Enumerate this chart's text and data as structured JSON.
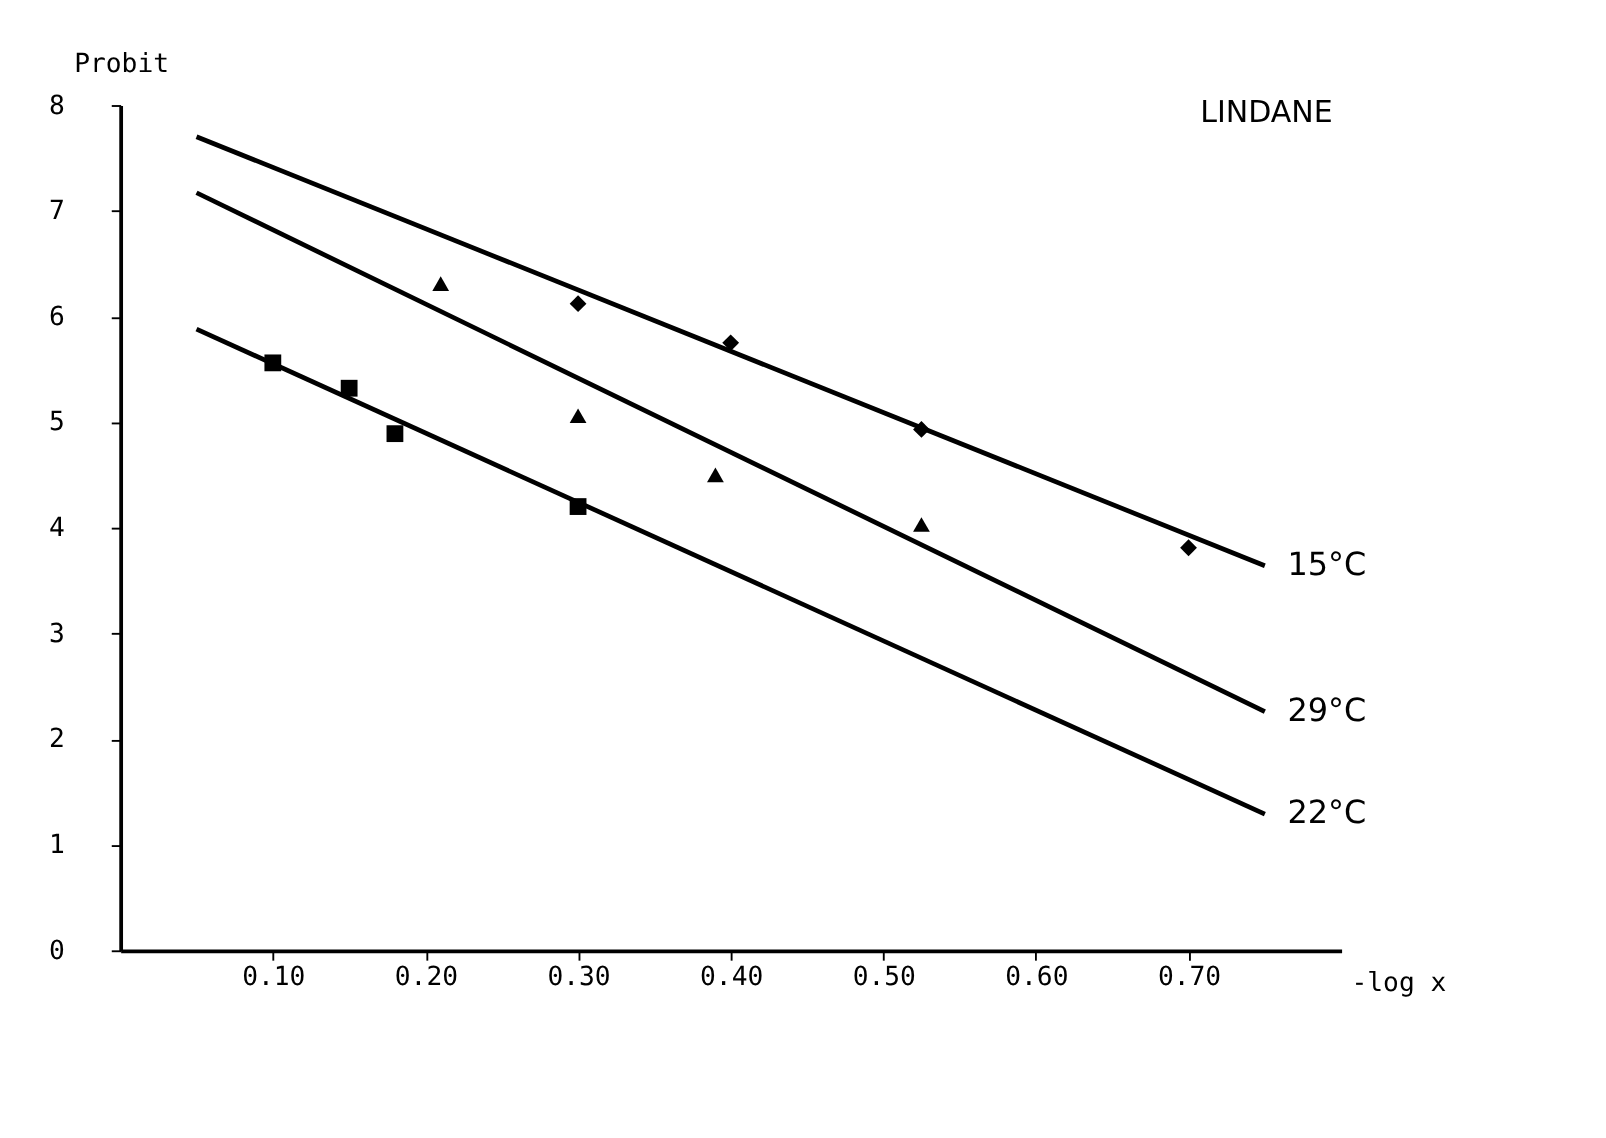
{
  "chart_data": {
    "type": "line",
    "title": "LINDANE",
    "xlabel": "-log x",
    "ylabel": "Probit",
    "xlim": [
      0,
      0.8
    ],
    "ylim": [
      0,
      8
    ],
    "xticks": [
      {
        "value": 0.1,
        "label": "0.10"
      },
      {
        "value": 0.2,
        "label": "0.20"
      },
      {
        "value": 0.3,
        "label": "0.30"
      },
      {
        "value": 0.4,
        "label": "0.40"
      },
      {
        "value": 0.5,
        "label": "0.50"
      },
      {
        "value": 0.6,
        "label": "0.60"
      },
      {
        "value": 0.7,
        "label": "0.70"
      }
    ],
    "yticks": [
      0,
      1,
      2,
      3,
      4,
      5,
      6,
      7,
      8
    ],
    "grid": false,
    "series": [
      {
        "name": "15°C",
        "type": "line",
        "color": "#000000",
        "marker": "none",
        "line_style": "solid",
        "x": [
          0.05,
          0.75
        ],
        "values": [
          7.7,
          3.64
        ]
      },
      {
        "name": "29°C",
        "type": "line",
        "color": "#000000",
        "marker": "none",
        "line_style": "solid",
        "x": [
          0.05,
          0.75
        ],
        "values": [
          7.17,
          2.26
        ]
      },
      {
        "name": "22°C",
        "type": "line",
        "color": "#000000",
        "marker": "none",
        "line_style": "solid",
        "x": [
          0.05,
          0.75
        ],
        "values": [
          5.88,
          1.29
        ]
      },
      {
        "type": "scatter",
        "color": "#000000",
        "marker": "diamond",
        "x": [
          0.3,
          0.4,
          0.525,
          0.7
        ],
        "values": [
          6.12,
          5.75,
          4.93,
          3.81
        ]
      },
      {
        "type": "scatter",
        "color": "#000000",
        "marker": "triangle",
        "x": [
          0.21,
          0.3,
          0.39,
          0.525
        ],
        "values": [
          6.31,
          5.06,
          4.5,
          4.03
        ]
      },
      {
        "type": "scatter",
        "color": "#000000",
        "marker": "square",
        "x": [
          0.1,
          0.15,
          0.18,
          0.3
        ],
        "values": [
          5.56,
          5.32,
          4.89,
          4.2
        ]
      }
    ]
  }
}
